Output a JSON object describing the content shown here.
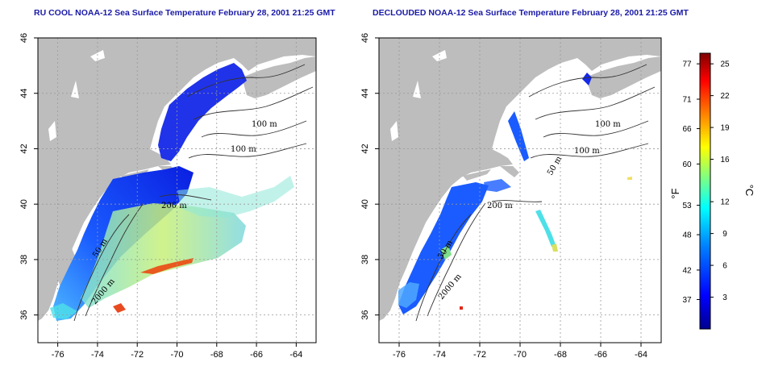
{
  "panels": [
    {
      "title": "RU COOL NOAA-12 Sea Surface Temperature February 28, 2001 21:25 GMT",
      "contour_labels": [
        "100 m",
        "100 m",
        "200 m",
        "50 m",
        "2000 m"
      ]
    },
    {
      "title": "DECLOUDED NOAA-12 Sea Surface Temperature February 28, 2001 21:25 GMT",
      "contour_labels": [
        "100 m",
        "100 m",
        "50 m",
        "200 m",
        "50 m",
        "2000 m"
      ]
    }
  ],
  "axes": {
    "x_ticks": [
      "-76",
      "-74",
      "-72",
      "-70",
      "-68",
      "-66",
      "-64"
    ],
    "y_ticks": [
      "36",
      "38",
      "40",
      "42",
      "44",
      "46"
    ],
    "x_range": [
      -77,
      -63
    ],
    "y_range": [
      35,
      46
    ],
    "grid": "dotted"
  },
  "colorbar": {
    "fahrenheit_label": "°F",
    "celsius_label": "°C",
    "fahrenheit_ticks": [
      "77",
      "71",
      "66",
      "60",
      "53",
      "48",
      "42",
      "37"
    ],
    "celsius_ticks": [
      "25",
      "22",
      "19",
      "16",
      "12",
      "9",
      "6",
      "3"
    ],
    "range_c": [
      0,
      26
    ],
    "colors": [
      "#00008f",
      "#0000ff",
      "#0080ff",
      "#00ffff",
      "#80ff80",
      "#ffff00",
      "#ff8000",
      "#ff0000",
      "#800000"
    ]
  },
  "colors": {
    "land": "#bdbdbd",
    "water_background": "#ffffff",
    "frame": "#000000"
  }
}
